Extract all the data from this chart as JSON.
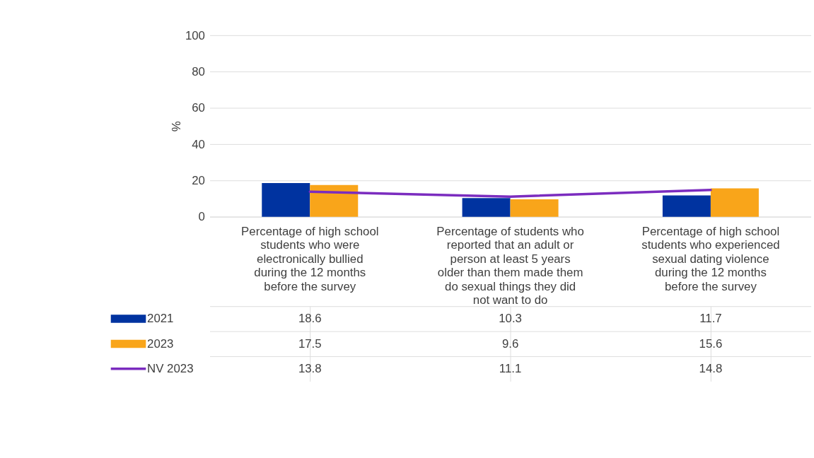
{
  "chart_data": {
    "type": "bar",
    "ylabel": "%",
    "categories": [
      "Percentage of high school students who were electronically bullied during the 12 months before the survey",
      "Percentage of students who reported that an adult or person at least 5 years older than them made them do sexual things they did not want to do",
      "Percentage of high school students who experienced sexual dating violence during the 12 months before the survey"
    ],
    "series": [
      {
        "name": "2021",
        "color": "#0033a0",
        "values": [
          18.6,
          10.3,
          11.7
        ]
      },
      {
        "name": "2023",
        "color": "#f9a51a",
        "values": [
          17.5,
          9.6,
          15.6
        ]
      },
      {
        "name": "NV 2023",
        "type": "line",
        "color": "#7b2cbf",
        "values": [
          13.8,
          11.1,
          14.8
        ]
      }
    ],
    "ylim": [
      0,
      100
    ],
    "yticks": [
      0,
      20,
      40,
      60,
      80,
      100
    ],
    "grid": "y",
    "legend": "bottom",
    "data_labels": true
  }
}
